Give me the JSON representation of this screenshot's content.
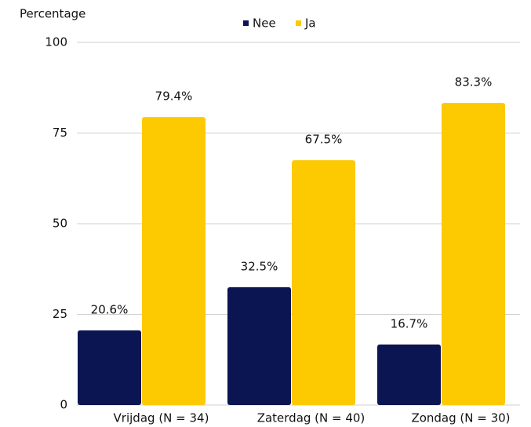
{
  "chart_data": {
    "type": "bar",
    "y_axis_label": "Percentage",
    "categories": [
      "Vrijdag (N = 34)",
      "Zaterdag (N = 40)",
      "Zondag (N = 30)"
    ],
    "series": [
      {
        "name": "Nee",
        "color": "#0b1551",
        "values": [
          20.6,
          32.5,
          16.7
        ],
        "value_labels": [
          "20.6%",
          "32.5%",
          "16.7%"
        ]
      },
      {
        "name": "Ja",
        "color": "#fdc900",
        "values": [
          79.4,
          67.5,
          83.3
        ],
        "value_labels": [
          "79.4%",
          "67.5%",
          "83.3%"
        ]
      }
    ],
    "ylim": [
      0,
      100
    ],
    "yticks": [
      0,
      25,
      50,
      75,
      100
    ],
    "grid": true,
    "legend": "top"
  }
}
